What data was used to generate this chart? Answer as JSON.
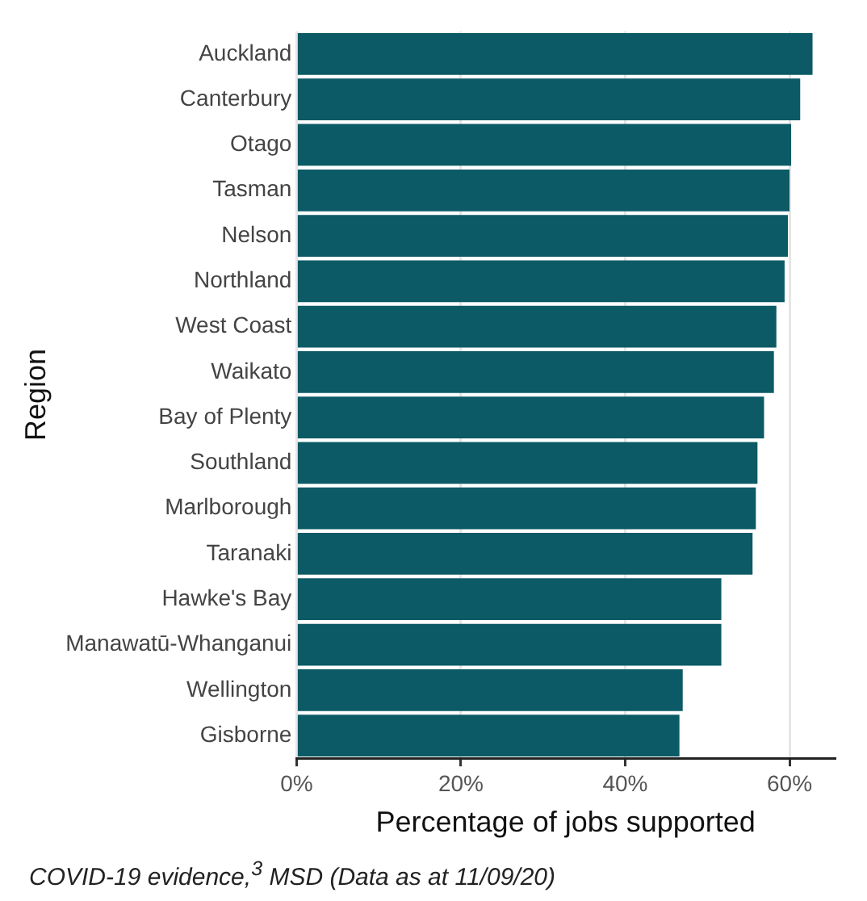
{
  "chart_data": {
    "type": "bar",
    "orientation": "horizontal",
    "xlabel": "Percentage of jobs supported",
    "ylabel": "Region",
    "categories": [
      "Auckland",
      "Canterbury",
      "Otago",
      "Tasman",
      "Nelson",
      "Northland",
      "West Coast",
      "Waikato",
      "Bay of Plenty",
      "Southland",
      "Marlborough",
      "Taranaki",
      "Hawke's Bay",
      "Manawatū-Whanganui",
      "Wellington",
      "Gisborne"
    ],
    "values": [
      62.8,
      61.3,
      60.2,
      60.0,
      59.8,
      59.4,
      58.4,
      58.1,
      56.9,
      56.1,
      55.9,
      55.5,
      51.7,
      51.7,
      47.0,
      46.6
    ],
    "color": "#0b5a66",
    "xlim": [
      0,
      65.5
    ],
    "xticks": [
      {
        "value": 0,
        "label": "0%"
      },
      {
        "value": 20,
        "label": "20%"
      },
      {
        "value": 40,
        "label": "40%"
      },
      {
        "value": 60,
        "label": "60%"
      }
    ],
    "grid": "x",
    "legend": false,
    "annotations": [
      "COVID-19 evidence,$^{3}$ MSD (Data as at 11/09/20)"
    ]
  }
}
